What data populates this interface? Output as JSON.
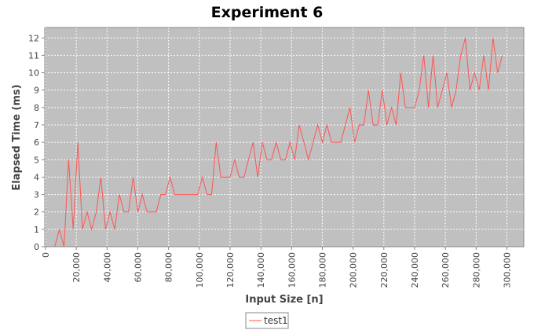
{
  "chart_data": {
    "type": "line",
    "title": "Experiment 6",
    "x_label": "Input Size [n]",
    "y_label": "Elapsed Time (ms)",
    "x": [
      0,
      3000,
      6000,
      9000,
      12000,
      15000,
      18000,
      21000,
      24000,
      27000,
      30000,
      33000,
      36000,
      39000,
      42000,
      45000,
      48000,
      51000,
      54000,
      57000,
      60000,
      63000,
      66000,
      69000,
      72000,
      75000,
      78000,
      81000,
      84000,
      87000,
      90000,
      93000,
      96000,
      99000,
      102000,
      105000,
      108000,
      111000,
      114000,
      117000,
      120000,
      123000,
      126000,
      129000,
      132000,
      135000,
      138000,
      141000,
      144000,
      147000,
      150000,
      153000,
      156000,
      159000,
      162000,
      165000,
      168000,
      171000,
      174000,
      177000,
      180000,
      183000,
      186000,
      189000,
      192000,
      195000,
      198000,
      201000,
      204000,
      207000,
      210000,
      213000,
      216000,
      219000,
      222000,
      225000,
      228000,
      231000,
      234000,
      237000,
      240000,
      243000,
      246000,
      249000,
      252000,
      255000,
      258000,
      261000,
      264000,
      267000,
      270000,
      273000,
      276000,
      279000,
      282000,
      285000,
      288000,
      291000,
      294000,
      297000
    ],
    "series": [
      {
        "name": "test1",
        "color": "#ff5555",
        "values": [
          0,
          0,
          0,
          1,
          0,
          5,
          1,
          6,
          1,
          2,
          1,
          2,
          4,
          1,
          2,
          1,
          3,
          2,
          2,
          4,
          2,
          3,
          2,
          2,
          2,
          3,
          3,
          4,
          3,
          3,
          3,
          3,
          3,
          3,
          4,
          3,
          3,
          6,
          4,
          4,
          4,
          5,
          4,
          4,
          5,
          6,
          4,
          6,
          5,
          5,
          6,
          5,
          5,
          6,
          5,
          7,
          6,
          5,
          6,
          7,
          6,
          7,
          6,
          6,
          6,
          7,
          8,
          6,
          7,
          7,
          9,
          7,
          7,
          9,
          7,
          8,
          7,
          10,
          8,
          8,
          8,
          9,
          11,
          8,
          11,
          8,
          9,
          10,
          8,
          9,
          11,
          12,
          9,
          10,
          9,
          11,
          9,
          12,
          10,
          11
        ]
      }
    ],
    "xlim": [
      -500,
      311000
    ],
    "xticks": [
      0,
      {
        "value": 20000,
        "label": "20,000"
      },
      {
        "value": 40000,
        "label": "40,000"
      },
      {
        "value": 60000,
        "label": "60,000"
      },
      {
        "value": 80000,
        "label": "80,000"
      },
      {
        "value": 100000,
        "label": "100,000"
      },
      {
        "value": 120000,
        "label": "120,000"
      },
      {
        "value": 140000,
        "label": "140,000"
      },
      {
        "value": 160000,
        "label": "160,000"
      },
      {
        "value": 180000,
        "label": "180,000"
      },
      {
        "value": 200000,
        "label": "200,000"
      },
      {
        "value": 220000,
        "label": "220,000"
      },
      {
        "value": 240000,
        "label": "240,000"
      },
      {
        "value": 260000,
        "label": "260,000"
      },
      {
        "value": 280000,
        "label": "280,000"
      },
      {
        "value": 300000,
        "label": "300,000"
      }
    ],
    "ylim": [
      0,
      12.6
    ],
    "yticks": [
      0,
      1,
      2,
      3,
      4,
      5,
      6,
      7,
      8,
      9,
      10,
      11,
      12
    ],
    "grid": true,
    "legend": "bottom"
  }
}
